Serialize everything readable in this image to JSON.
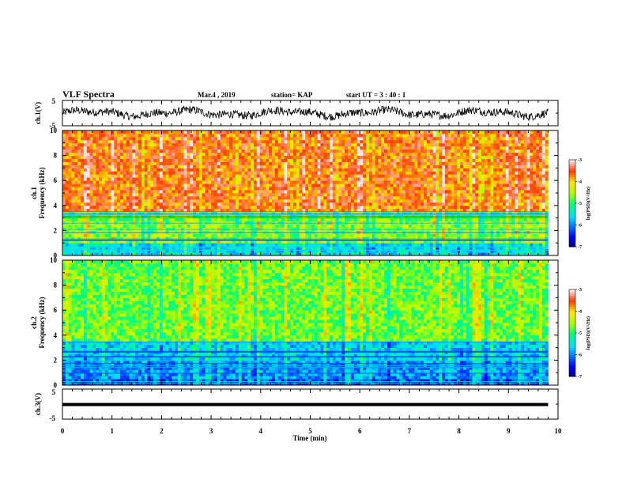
{
  "header": {
    "title": "VLF Spectra",
    "date": "Mar.4 , 2019",
    "station": "station= KAP",
    "start": "start UT =  3 : 40 : 1"
  },
  "chart_data": [
    {
      "type": "line",
      "panel": "ch1-waveform",
      "ylabel": "ch.1(V)",
      "ylim": [
        -5,
        5
      ],
      "yticks": [
        "5",
        "-5"
      ],
      "xlim": [
        0,
        10
      ],
      "x_data_end": 9.8,
      "description_series": "noisy voltage trace between about -3 and 3 V"
    },
    {
      "type": "heatmap",
      "panel": "ch1-spectrogram",
      "ylabel": "ch.1\nFrequency (kHz)",
      "ylim": [
        0,
        10
      ],
      "yticks": [
        "0",
        "2",
        "4",
        "6",
        "8",
        "10"
      ],
      "xlim": [
        0,
        10
      ],
      "x_data_end": 9.8,
      "colorbar": {
        "label": "log(PSD)(V²/Hz)",
        "ticks": [
          "-3",
          "-4",
          "-5",
          "-6",
          "-7"
        ],
        "range": [
          -7,
          -3
        ]
      },
      "profile": [
        {
          "from_khz": 0,
          "to_khz": 0.9,
          "level": -5.5
        },
        {
          "from_khz": 0.9,
          "to_khz": 2.8,
          "level": -4.6
        },
        {
          "from_khz": 2.8,
          "to_khz": 3.4,
          "level": -4.8
        },
        {
          "from_khz": 3.4,
          "to_khz": 10,
          "level": -3.6
        }
      ]
    },
    {
      "type": "heatmap",
      "panel": "ch2-spectrogram",
      "ylabel": "ch.2\nFrequency (kHz)",
      "ylim": [
        0,
        10
      ],
      "yticks": [
        "0",
        "2",
        "4",
        "6",
        "8",
        "10"
      ],
      "xlim": [
        0,
        10
      ],
      "x_data_end": 9.8,
      "colorbar": {
        "label": "log(PSD)(V²/Hz)",
        "ticks": [
          "-3",
          "-4",
          "-5",
          "-6",
          "-7"
        ],
        "range": [
          -7,
          -3
        ]
      },
      "profile": [
        {
          "from_khz": 0,
          "to_khz": 0.6,
          "level": -6.2
        },
        {
          "from_khz": 0.6,
          "to_khz": 2.0,
          "level": -5.9
        },
        {
          "from_khz": 2.0,
          "to_khz": 3.5,
          "level": -5.6
        },
        {
          "from_khz": 3.5,
          "to_khz": 10,
          "level": -4.7
        }
      ]
    },
    {
      "type": "line",
      "panel": "ch3-waveform",
      "ylabel": "ch.3(V)",
      "ylim": [
        -5,
        5
      ],
      "yticks": [
        "5",
        "-5"
      ],
      "xlim": [
        0,
        10
      ],
      "x_data_end": 9.8,
      "constant_value": 0,
      "xlabel": "Time (min)",
      "xticks": [
        "0",
        "1",
        "2",
        "3",
        "4",
        "5",
        "6",
        "7",
        "8",
        "9",
        "10"
      ]
    }
  ]
}
